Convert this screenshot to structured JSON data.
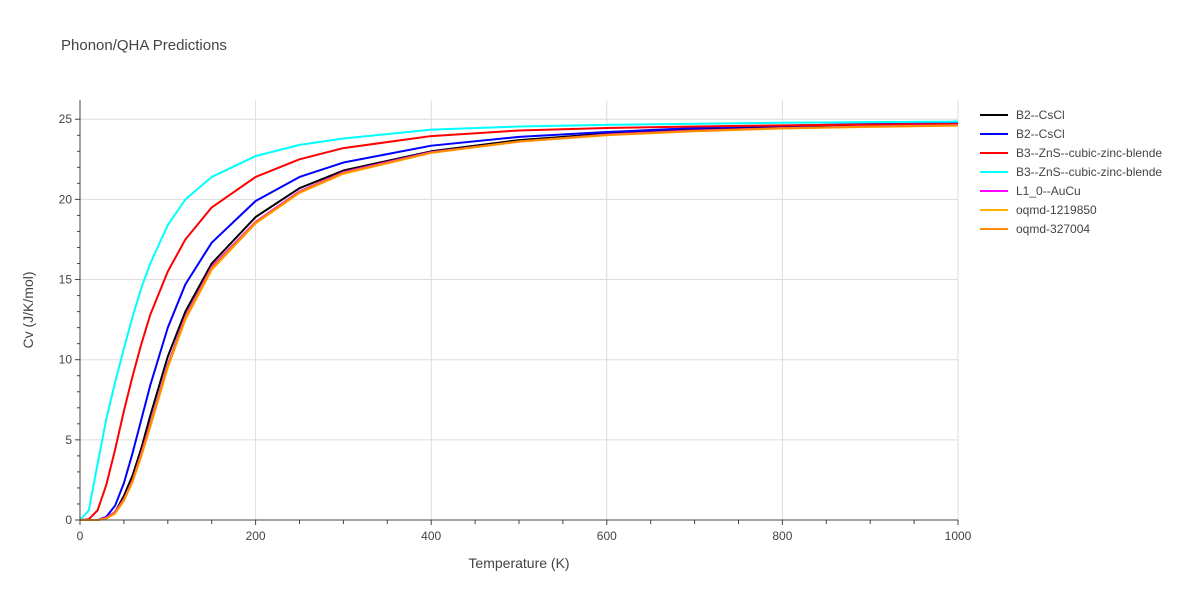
{
  "chart_data": {
    "type": "line",
    "title": "Phonon/QHA Predictions",
    "xlabel": "Temperature (K)",
    "ylabel": "Cv (J/K/mol)",
    "xlim": [
      0,
      1000
    ],
    "ylim": [
      0,
      26.2
    ],
    "x_ticks": [
      0,
      200,
      400,
      600,
      800,
      1000
    ],
    "y_ticks": [
      0,
      5,
      10,
      15,
      20,
      25
    ],
    "grid": true,
    "legend_position": "right",
    "series": [
      {
        "name": "B2--CsCl",
        "color": "#000000",
        "x": [
          0,
          20,
          30,
          40,
          50,
          60,
          70,
          80,
          100,
          120,
          150,
          200,
          250,
          300,
          400,
          500,
          600,
          700,
          800,
          900,
          1000
        ],
        "y": [
          0,
          0,
          0.1,
          0.5,
          1.5,
          2.8,
          4.5,
          6.5,
          10.2,
          13.0,
          16.0,
          18.9,
          20.7,
          21.8,
          23.0,
          23.7,
          24.1,
          24.35,
          24.55,
          24.68,
          24.75
        ]
      },
      {
        "name": "B2--CsCl",
        "color": "#0000ff",
        "x": [
          0,
          20,
          30,
          40,
          50,
          60,
          70,
          80,
          100,
          120,
          150,
          200,
          250,
          300,
          400,
          500,
          600,
          700,
          800,
          900,
          1000
        ],
        "y": [
          0,
          0,
          0.2,
          0.9,
          2.3,
          4.2,
          6.3,
          8.4,
          12.0,
          14.7,
          17.3,
          19.9,
          21.4,
          22.3,
          23.35,
          23.9,
          24.2,
          24.45,
          24.6,
          24.7,
          24.75
        ]
      },
      {
        "name": "B3--ZnS--cubic-zinc-blende",
        "color": "#ff0000",
        "x": [
          0,
          10,
          20,
          30,
          40,
          50,
          60,
          70,
          80,
          100,
          120,
          150,
          200,
          250,
          300,
          400,
          500,
          600,
          700,
          800,
          900,
          1000
        ],
        "y": [
          0,
          0.05,
          0.6,
          2.2,
          4.4,
          6.8,
          9.0,
          11.0,
          12.8,
          15.5,
          17.5,
          19.5,
          21.4,
          22.5,
          23.2,
          23.95,
          24.3,
          24.45,
          24.55,
          24.62,
          24.67,
          24.7
        ]
      },
      {
        "name": "B3--ZnS--cubic-zinc-blende",
        "color": "#00ffff",
        "x": [
          0,
          10,
          20,
          30,
          40,
          50,
          60,
          70,
          80,
          100,
          120,
          150,
          200,
          250,
          300,
          400,
          500,
          600,
          700,
          800,
          900,
          1000
        ],
        "y": [
          0,
          0.6,
          3.5,
          6.3,
          8.6,
          10.7,
          12.7,
          14.5,
          16.0,
          18.4,
          20.0,
          21.4,
          22.7,
          23.4,
          23.8,
          24.35,
          24.55,
          24.65,
          24.72,
          24.78,
          24.82,
          24.85
        ]
      },
      {
        "name": "L1_0--AuCu",
        "color": "#ff00ff",
        "x": [
          0,
          20,
          30,
          40,
          50,
          60,
          70,
          80,
          100,
          120,
          150,
          200,
          250,
          300,
          400,
          500,
          600,
          700,
          800,
          900,
          1000
        ],
        "y": [
          0,
          0,
          0.15,
          0.5,
          1.3,
          2.5,
          4.2,
          6.0,
          9.7,
          12.7,
          15.8,
          18.6,
          20.5,
          21.7,
          22.95,
          23.6,
          24.05,
          24.3,
          24.45,
          24.55,
          24.63
        ]
      },
      {
        "name": "oqmd-1219850",
        "color": "#ffb000",
        "x": [
          0,
          20,
          30,
          40,
          50,
          60,
          70,
          80,
          100,
          120,
          150,
          200,
          250,
          300,
          400,
          500,
          600,
          700,
          800,
          900,
          1000
        ],
        "y": [
          0,
          0,
          0.1,
          0.4,
          1.2,
          2.4,
          4.0,
          5.8,
          9.5,
          12.5,
          15.6,
          18.5,
          20.4,
          21.6,
          22.9,
          23.6,
          24.0,
          24.25,
          24.42,
          24.52,
          24.6
        ]
      },
      {
        "name": "oqmd-327004",
        "color": "#ff8c00",
        "x": [
          0,
          20,
          30,
          40,
          50,
          60,
          70,
          80,
          100,
          120,
          150,
          200,
          250,
          300,
          400,
          500,
          600,
          700,
          800,
          900,
          1000
        ],
        "y": [
          0,
          0,
          0.1,
          0.45,
          1.25,
          2.45,
          4.1,
          5.9,
          9.6,
          12.6,
          15.7,
          18.55,
          20.45,
          21.65,
          22.92,
          23.62,
          24.02,
          24.27,
          24.44,
          24.54,
          24.62
        ]
      }
    ]
  }
}
